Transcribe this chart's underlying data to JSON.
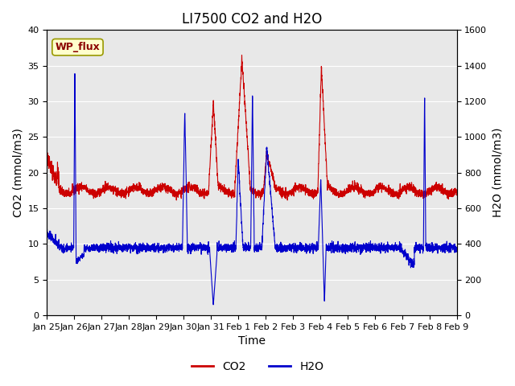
{
  "title": "LI7500 CO2 and H2O",
  "xlabel": "Time",
  "ylabel_left": "CO2 (mmol/m3)",
  "ylabel_right": "H2O (mmol/m3)",
  "ylim_left": [
    0,
    40
  ],
  "ylim_right": [
    0,
    1600
  ],
  "yticks_left": [
    0,
    5,
    10,
    15,
    20,
    25,
    30,
    35,
    40
  ],
  "yticks_right": [
    0,
    200,
    400,
    600,
    800,
    1000,
    1200,
    1400,
    1600
  ],
  "xtick_labels": [
    "Jan 25",
    "Jan 26",
    "Jan 27",
    "Jan 28",
    "Jan 29",
    "Jan 30",
    "Jan 31",
    "Feb 1",
    "Feb 2",
    "Feb 3",
    "Feb 4",
    "Feb 5",
    "Feb 6",
    "Feb 7",
    "Feb 8",
    "Feb 9"
  ],
  "co2_color": "#CC0000",
  "h2o_color": "#0000CC",
  "bg_color": "#E8E8E8",
  "legend_label_co2": "CO2",
  "legend_label_h2o": "H2O",
  "station_label": "WP_flux",
  "n_points": 3360,
  "time_days": 15
}
